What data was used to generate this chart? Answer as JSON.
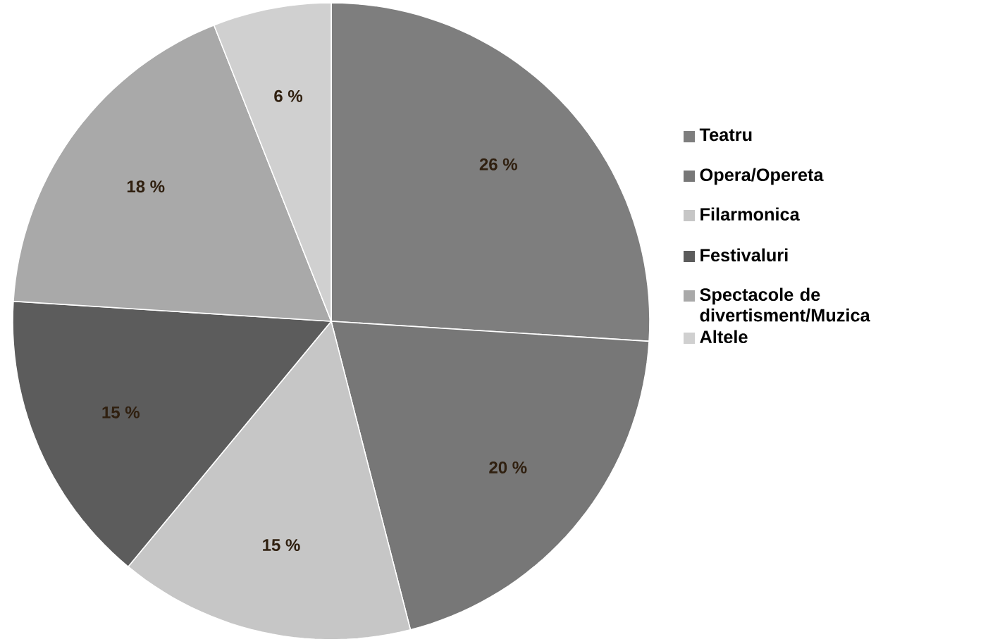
{
  "chart_data": {
    "type": "pie",
    "categories": [
      "Teatru",
      "Opera/Opereta",
      "Filarmonica",
      "Festivaluri",
      "Spectacole de divertisment/Muzica",
      "Altele"
    ],
    "values": [
      26,
      20,
      15,
      15,
      18,
      6
    ],
    "colors": [
      "#7e7e7e",
      "#777777",
      "#c6c6c6",
      "#5c5c5c",
      "#a9a9a9",
      "#d0d0d0"
    ],
    "value_labels": [
      "26 %",
      "20 %",
      "15 %",
      "15 %",
      "18 %",
      "6 %"
    ],
    "legend": "right"
  }
}
